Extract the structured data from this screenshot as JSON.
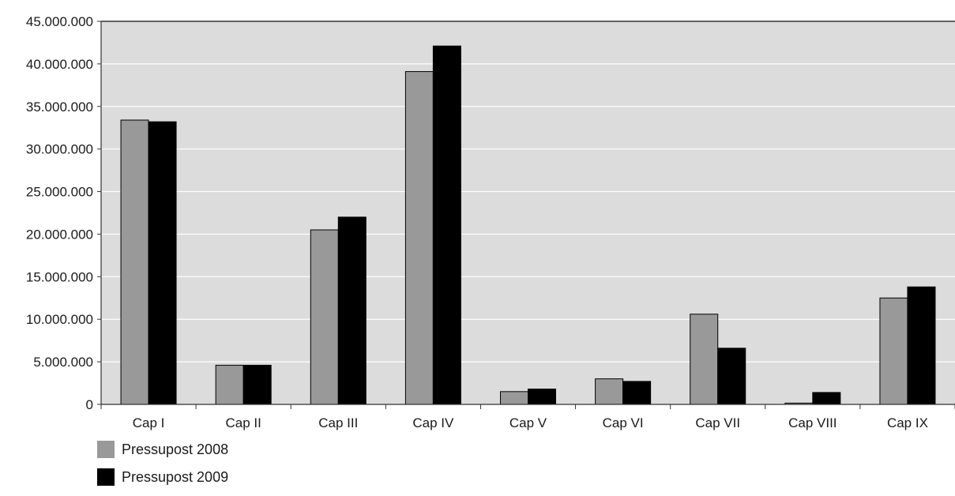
{
  "chart_data": {
    "type": "bar",
    "categories": [
      "Cap I",
      "Cap II",
      "Cap III",
      "Cap IV",
      "Cap V",
      "Cap VI",
      "Cap VII",
      "Cap VIII",
      "Cap IX"
    ],
    "series": [
      {
        "name": "Pressupost 2008",
        "color": "#999999",
        "values": [
          33400000,
          4600000,
          20500000,
          39100000,
          1500000,
          3000000,
          10600000,
          150000,
          12500000
        ]
      },
      {
        "name": "Pressupost 2009",
        "color": "#000000",
        "values": [
          33200000,
          4600000,
          22000000,
          42100000,
          1800000,
          2700000,
          6600000,
          1400000,
          13800000
        ]
      }
    ],
    "ylim": [
      0,
      45000000
    ],
    "yticks": [
      0,
      5000000,
      10000000,
      15000000,
      20000000,
      25000000,
      30000000,
      35000000,
      40000000,
      45000000
    ],
    "ytick_labels": [
      "0",
      "5.000.000",
      "10.000.000",
      "15.000.000",
      "20.000.000",
      "25.000.000",
      "30.000.000",
      "35.000.000",
      "40.000.000",
      "45.000.000"
    ],
    "title": "",
    "xlabel": "",
    "ylabel": "",
    "grid": true,
    "legend_position": "bottom-left",
    "plot_background": "#dcdcdc"
  }
}
